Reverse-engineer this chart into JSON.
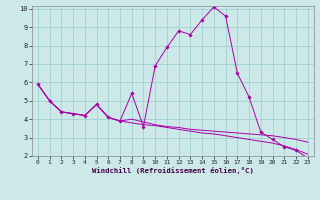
{
  "x": [
    0,
    1,
    2,
    3,
    4,
    5,
    6,
    7,
    8,
    9,
    10,
    11,
    12,
    13,
    14,
    15,
    16,
    17,
    18,
    19,
    20,
    21,
    22,
    23
  ],
  "line1": [
    5.9,
    5.0,
    4.4,
    4.3,
    4.2,
    4.8,
    4.1,
    3.9,
    5.4,
    3.6,
    6.9,
    7.9,
    8.8,
    8.6,
    9.4,
    10.1,
    9.6,
    6.5,
    5.2,
    3.3,
    2.9,
    2.5,
    2.3,
    1.9
  ],
  "line2": [
    5.9,
    5.0,
    4.4,
    4.3,
    4.2,
    4.8,
    4.1,
    3.9,
    4.0,
    3.85,
    3.7,
    3.6,
    3.55,
    3.45,
    3.4,
    3.35,
    3.3,
    3.25,
    3.2,
    3.15,
    3.1,
    3.0,
    2.9,
    2.75
  ],
  "line3": [
    5.9,
    5.0,
    4.4,
    4.3,
    4.2,
    4.8,
    4.1,
    3.9,
    3.8,
    3.7,
    3.65,
    3.55,
    3.45,
    3.35,
    3.25,
    3.2,
    3.1,
    3.0,
    2.9,
    2.8,
    2.7,
    2.55,
    2.35,
    2.1
  ],
  "line_color": "#aa00aa",
  "bg_color": "#cce8e8",
  "grid_color": "#99cccc",
  "xlabel": "Windchill (Refroidissement éolien,°C)",
  "ylim": [
    2,
    10
  ],
  "xlim": [
    -0.5,
    23.5
  ],
  "yticks": [
    2,
    3,
    4,
    5,
    6,
    7,
    8,
    9,
    10
  ],
  "xticks": [
    0,
    1,
    2,
    3,
    4,
    5,
    6,
    7,
    8,
    9,
    10,
    11,
    12,
    13,
    14,
    15,
    16,
    17,
    18,
    19,
    20,
    21,
    22,
    23
  ]
}
